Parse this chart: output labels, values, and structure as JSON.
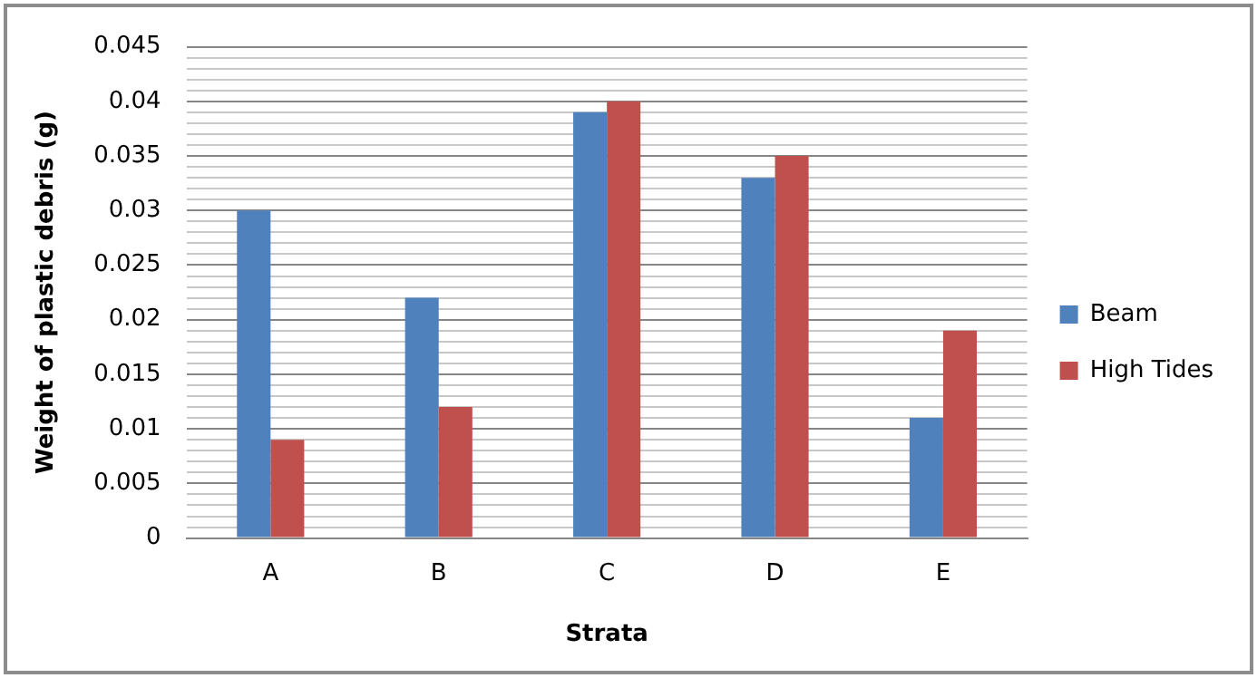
{
  "chart_data": {
    "type": "bar",
    "xlabel": "Strata",
    "ylabel": "Weight of plastic debris (g)",
    "categories": [
      "A",
      "B",
      "C",
      "D",
      "E"
    ],
    "series": [
      {
        "name": "Beam",
        "color": "#4f81bd",
        "values": [
          0.03,
          0.022,
          0.039,
          0.033,
          0.011
        ]
      },
      {
        "name": "High Tides",
        "color": "#c0504d",
        "values": [
          0.009,
          0.012,
          0.04,
          0.035,
          0.019
        ]
      }
    ],
    "ylim": [
      0,
      0.045
    ],
    "yticks": [
      0,
      {
        "value": 0.001,
        "label": null
      },
      {
        "value": 0.002,
        "label": null
      },
      {
        "value": 0.003,
        "label": null
      },
      {
        "value": 0.004,
        "label": null
      },
      0.005,
      {
        "value": 0.006,
        "label": null
      },
      {
        "value": 0.007,
        "label": null
      },
      {
        "value": 0.008,
        "label": null
      },
      {
        "value": 0.009,
        "label": null
      },
      0.01,
      {
        "value": 0.011,
        "label": null
      },
      {
        "value": 0.012,
        "label": null
      },
      {
        "value": 0.013,
        "label": null
      },
      {
        "value": 0.014,
        "label": null
      },
      0.015,
      {
        "value": 0.016,
        "label": null
      },
      {
        "value": 0.017,
        "label": null
      },
      {
        "value": 0.018,
        "label": null
      },
      {
        "value": 0.019,
        "label": null
      },
      0.02,
      {
        "value": 0.021,
        "label": null
      },
      {
        "value": 0.022,
        "label": null
      },
      {
        "value": 0.023,
        "label": null
      },
      {
        "value": 0.024,
        "label": null
      },
      0.025,
      {
        "value": 0.026,
        "label": null
      },
      {
        "value": 0.027,
        "label": null
      },
      {
        "value": 0.028,
        "label": null
      },
      {
        "value": 0.029,
        "label": null
      },
      0.03,
      {
        "value": 0.031,
        "label": null
      },
      {
        "value": 0.032,
        "label": null
      },
      {
        "value": 0.033,
        "label": null
      },
      {
        "value": 0.034,
        "label": null
      },
      0.035,
      {
        "value": 0.036,
        "label": null
      },
      {
        "value": 0.037,
        "label": null
      },
      {
        "value": 0.038,
        "label": null
      },
      {
        "value": 0.039,
        "label": null
      },
      0.04,
      {
        "value": 0.041,
        "label": null
      },
      {
        "value": 0.042,
        "label": null
      },
      {
        "value": 0.043,
        "label": null
      },
      {
        "value": 0.044,
        "label": null
      },
      0.045
    ],
    "grid": "y",
    "legend": "right"
  }
}
